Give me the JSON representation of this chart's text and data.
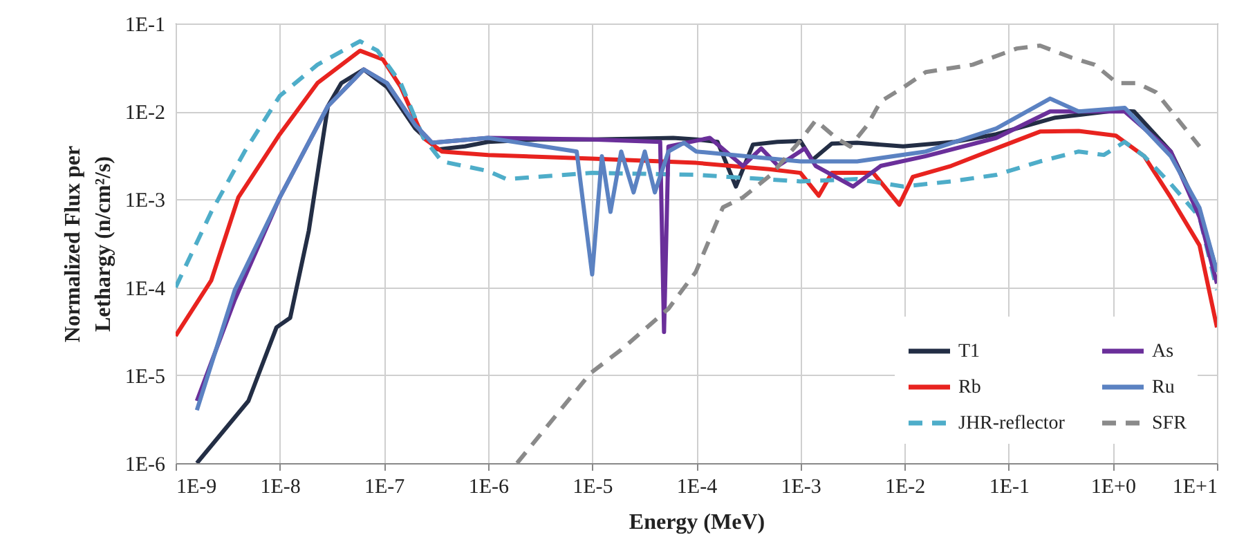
{
  "chart_data": {
    "type": "line",
    "xlabel": "Energy (MeV)",
    "ylabel": "Normalized Flux per Lethargy (n/cm²/s)",
    "log": "xy",
    "grid": true,
    "legend": "bottom right",
    "xlim": [
      1e-09,
      10
    ],
    "ylim": [
      1e-06,
      0.1
    ],
    "xticks": [
      {
        "value": 1e-09,
        "label": "1E-9"
      },
      {
        "value": 1e-08,
        "label": "1E-8"
      },
      {
        "value": 1e-07,
        "label": "1E-7"
      },
      {
        "value": 1e-06,
        "label": "1E-6"
      },
      {
        "value": 1e-05,
        "label": "1E-5"
      },
      {
        "value": 0.0001,
        "label": "1E-4"
      },
      {
        "value": 0.001,
        "label": "1E-3"
      },
      {
        "value": 0.01,
        "label": "1E-2"
      },
      {
        "value": 0.1,
        "label": "1E-1"
      },
      {
        "value": 1,
        "label": "1E+0"
      },
      {
        "value": 10,
        "label": "1E+1"
      }
    ],
    "yticks": [
      {
        "value": 1e-06,
        "label": "1E-6"
      },
      {
        "value": 1e-05,
        "label": "1E-5"
      },
      {
        "value": 0.0001,
        "label": "1E-4"
      },
      {
        "value": 0.001,
        "label": "1E-3"
      },
      {
        "value": 0.01,
        "label": "1E-2"
      },
      {
        "value": 0.1,
        "label": "1E-1"
      }
    ],
    "series": [
      {
        "name": "T1",
        "color": "#232e45",
        "line_style": "solid",
        "x": [
          1.6e-09,
          5e-09,
          9.3e-09,
          1.26e-08,
          1.9e-08,
          2.9e-08,
          3.9e-08,
          6.4e-08,
          1.07e-07,
          2e-07,
          3.3e-07,
          6e-07,
          1e-06,
          3e-06,
          1e-05,
          3e-05,
          6e-05,
          0.0001,
          0.00016,
          0.00024,
          0.00035,
          0.0006,
          0.001,
          0.0013,
          0.002,
          0.0035,
          0.0097,
          0.03,
          0.076,
          0.28,
          1.05,
          1.6,
          3.6,
          6.8,
          10
        ],
        "values": [
          1e-06,
          5.1e-06,
          3.5e-05,
          4.5e-05,
          0.00044,
          0.0115,
          0.021,
          0.03,
          0.019,
          0.0064,
          0.0037,
          0.004,
          0.0045,
          0.0048,
          0.0048,
          0.0049,
          0.005,
          0.0048,
          0.0045,
          0.0014,
          0.0042,
          0.0045,
          0.0046,
          0.0028,
          0.0043,
          0.0044,
          0.004,
          0.0045,
          0.0055,
          0.0085,
          0.0102,
          0.01,
          0.0035,
          0.00073,
          0.00015
        ]
      },
      {
        "name": "Rb",
        "color": "#e8231f",
        "line_style": "solid",
        "x": [
          1e-09,
          2.2e-09,
          4e-09,
          1e-08,
          2.3e-08,
          5.9e-08,
          9.8e-08,
          1.45e-07,
          2.4e-07,
          3.6e-07,
          1e-06,
          1e-05,
          0.0001,
          0.0005,
          0.001,
          0.0015,
          0.002,
          0.005,
          0.0089,
          0.012,
          0.028,
          0.076,
          0.2,
          0.47,
          1.07,
          2,
          3.6,
          6.8,
          10
        ],
        "values": [
          2.8e-05,
          0.00012,
          0.00105,
          0.0055,
          0.021,
          0.049,
          0.039,
          0.019,
          0.005,
          0.0035,
          0.0032,
          0.0029,
          0.0026,
          0.0022,
          0.002,
          0.0011,
          0.002,
          0.002,
          0.00087,
          0.0018,
          0.0024,
          0.0038,
          0.0059,
          0.006,
          0.0053,
          0.0031,
          0.00105,
          0.0003,
          3.5e-05
        ]
      },
      {
        "name": "JHR-reflector",
        "color": "#4eadc9",
        "line_style": "dashed",
        "x": [
          1e-09,
          2.2e-09,
          4.6e-09,
          1e-08,
          2.3e-08,
          5.9e-08,
          8.7e-08,
          1.45e-07,
          2.4e-07,
          3.6e-07,
          1e-06,
          1.5e-06,
          1e-05,
          0.0001,
          0.001,
          0.0035,
          0.0097,
          0.028,
          0.076,
          0.2,
          0.47,
          0.82,
          1.3,
          2,
          3.6,
          6.8,
          10
        ],
        "values": [
          0.0001,
          0.00072,
          0.0035,
          0.015,
          0.034,
          0.063,
          0.049,
          0.021,
          0.005,
          0.0027,
          0.0021,
          0.0017,
          0.002,
          0.0019,
          0.0016,
          0.0017,
          0.0014,
          0.0016,
          0.0019,
          0.0027,
          0.0035,
          0.0032,
          0.0045,
          0.0031,
          0.0015,
          0.00063,
          9.3e-05
        ]
      },
      {
        "name": "As",
        "color": "#6a2f9a",
        "line_style": "solid",
        "x": [
          1.6e-09,
          3.7e-09,
          1e-08,
          2.9e-08,
          6.4e-08,
          1.07e-07,
          2e-07,
          2.9e-07,
          1e-06,
          1e-05,
          4.5e-05,
          4.9e-05,
          5.4e-05,
          0.000135,
          0.00028,
          0.00042,
          0.00061,
          0.0011,
          0.0014,
          0.0032,
          0.0059,
          0.016,
          0.076,
          0.25,
          0.57,
          1.3,
          3.6,
          6.8,
          10
        ],
        "values": [
          5.1e-06,
          7.2e-05,
          0.00105,
          0.0115,
          0.03,
          0.021,
          0.007,
          0.0044,
          0.005,
          0.0048,
          0.0045,
          3.1e-05,
          0.004,
          0.005,
          0.0024,
          0.0038,
          0.0024,
          0.0038,
          0.0024,
          0.0014,
          0.0024,
          0.0031,
          0.005,
          0.01,
          0.01,
          0.01,
          0.0035,
          0.00063,
          0.00011
        ]
      },
      {
        "name": "Ru",
        "color": "#5b82c2",
        "line_style": "solid",
        "x": [
          1.6e-09,
          3.7e-09,
          1e-08,
          2.9e-08,
          6.4e-08,
          1.07e-07,
          2e-07,
          2.9e-07,
          1e-06,
          7.1e-06,
          1e-05,
          1.24e-05,
          1.5e-05,
          1.9e-05,
          2.5e-05,
          3.2e-05,
          4e-05,
          5.4e-05,
          7.6e-05,
          0.0001,
          0.001,
          0.0035,
          0.016,
          0.076,
          0.25,
          0.47,
          1.3,
          3.6,
          6.8,
          10
        ],
        "values": [
          4e-06,
          9.3e-05,
          0.00105,
          0.0115,
          0.03,
          0.021,
          0.007,
          0.0044,
          0.005,
          0.0035,
          0.00014,
          0.0031,
          0.00072,
          0.0035,
          0.0012,
          0.0035,
          0.0012,
          0.0035,
          0.0044,
          0.0035,
          0.0027,
          0.0027,
          0.0035,
          0.0064,
          0.014,
          0.01,
          0.011,
          0.0031,
          0.0008,
          0.00015
        ]
      },
      {
        "name": "SFR",
        "color": "#8a8a8a",
        "line_style": "dashed",
        "x": [
          1.9e-06,
          9.6e-06,
          1.9e-05,
          5.4e-05,
          9.9e-05,
          0.00018,
          0.00028,
          0.00052,
          0.00096,
          0.0014,
          0.0022,
          0.003,
          0.0044,
          0.0059,
          0.0099,
          0.016,
          0.045,
          0.12,
          0.2,
          0.4,
          0.67,
          1.1,
          1.7,
          2.6,
          6.8
        ],
        "values": [
          1e-06,
          1.05e-05,
          1.95e-05,
          5.7e-05,
          0.00015,
          0.00081,
          0.00105,
          0.0019,
          0.0044,
          0.0079,
          0.005,
          0.004,
          0.007,
          0.013,
          0.019,
          0.028,
          0.034,
          0.052,
          0.056,
          0.041,
          0.034,
          0.021,
          0.021,
          0.0165,
          0.004
        ]
      }
    ]
  }
}
